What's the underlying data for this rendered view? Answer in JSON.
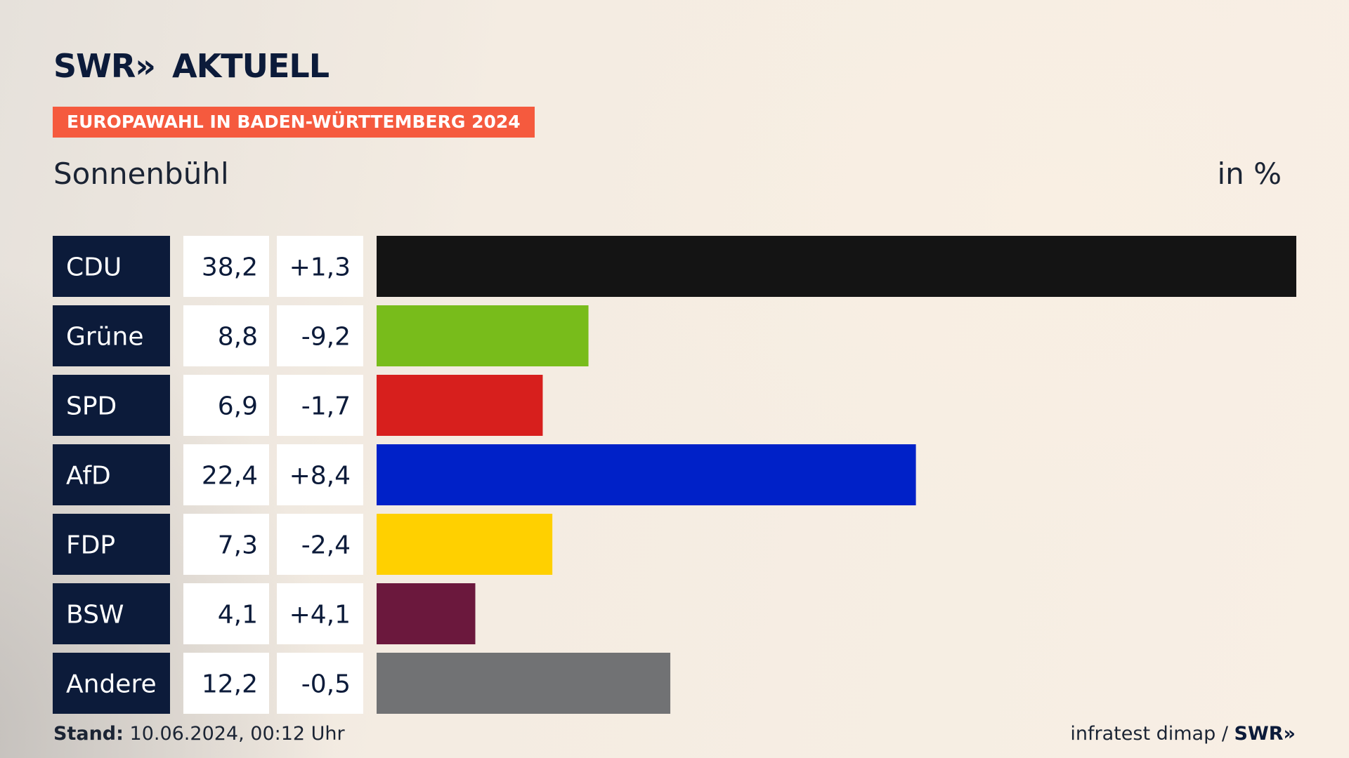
{
  "brand": {
    "logo_text": "SWR",
    "logo_chevrons": "»",
    "logo_suffix": "AKTUELL"
  },
  "badge": "EUROPAWAHL IN BADEN-WÜRTTEMBERG 2024",
  "subtitle": "Sonnenbühl",
  "unit_label": "in %",
  "colors": {
    "label_box": "#0c1b3a",
    "value_box": "#ffffff",
    "badge": "#f55a3e"
  },
  "chart_data": {
    "type": "bar",
    "orientation": "horizontal",
    "categories": [
      "CDU",
      "Grüne",
      "SPD",
      "AfD",
      "FDP",
      "BSW",
      "Andere"
    ],
    "values": [
      38.2,
      8.8,
      6.9,
      22.4,
      7.3,
      4.1,
      12.2
    ],
    "value_labels": [
      "38,2",
      "8,8",
      "6,9",
      "22,4",
      "7,3",
      "4,1",
      "12,2"
    ],
    "change_labels": [
      "+1,3",
      "-9,2",
      "-1,7",
      "+8,4",
      "-2,4",
      "+4,1",
      "-0,5"
    ],
    "changes": [
      1.3,
      -9.2,
      -1.7,
      8.4,
      -2.4,
      4.1,
      -0.5
    ],
    "bar_colors": [
      "#141414",
      "#78bc1b",
      "#d71f1d",
      "#0021c8",
      "#ffd000",
      "#6b183d",
      "#717274"
    ],
    "xlim": [
      0,
      38.2
    ],
    "grid": false,
    "legend": "none"
  },
  "footer": {
    "stand_label": "Stand:",
    "stand_value": "10.06.2024, 00:12 Uhr",
    "source": "infratest dimap /",
    "source_logo": "SWR»"
  }
}
